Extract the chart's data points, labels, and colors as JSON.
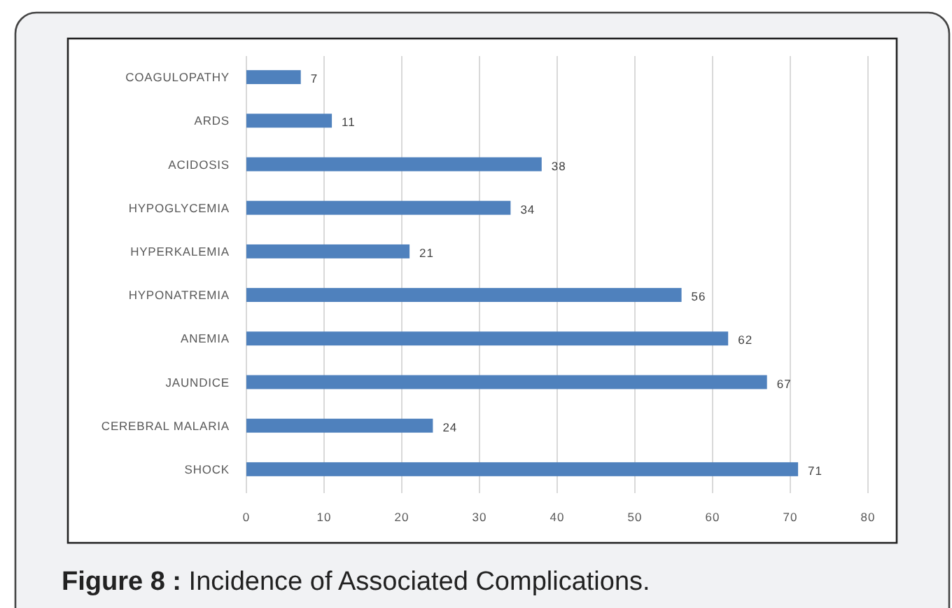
{
  "chart_data": {
    "type": "bar",
    "orientation": "horizontal",
    "title": "Figure 8 : Incidence of Associated Complications.",
    "categories": [
      "COAGULOPATHY",
      "ARDS",
      "ACIDOSIS",
      "HYPOGLYCEMIA",
      "HYPERKALEMIA",
      "HYPONATREMIA",
      "ANEMIA",
      "JAUNDICE",
      "CEREBRAL MALARIA",
      "SHOCK"
    ],
    "values": [
      7,
      11,
      38,
      34,
      21,
      56,
      62,
      67,
      24,
      71
    ],
    "color": "#4f81bd",
    "xlim": [
      0,
      80
    ],
    "xticks": [
      0,
      10,
      20,
      30,
      40,
      50,
      60,
      70,
      80
    ],
    "grid": "x",
    "data_labels": true
  }
}
